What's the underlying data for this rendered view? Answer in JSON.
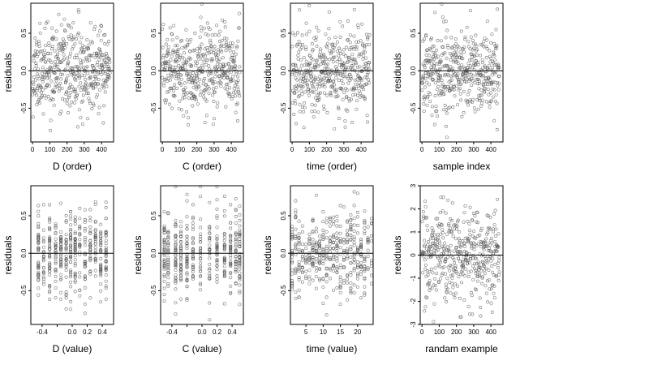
{
  "chart_data": [
    {
      "type": "scatter",
      "xlabel": "D (order)",
      "ylabel": "residuals",
      "xlim": [
        -10,
        470
      ],
      "ylim": [
        -0.95,
        0.9
      ],
      "xticks": [
        0,
        100,
        200,
        300,
        400
      ],
      "yticks": [
        -0.5,
        0.0,
        0.5
      ],
      "xtick_labels": [
        "0",
        "100",
        "200",
        "300",
        "400"
      ],
      "ytick_labels": [
        "-0.5",
        "0.0",
        "0.5"
      ],
      "reference_line_y": 0,
      "point_count": 450,
      "pattern": "index",
      "spread": 0.28,
      "seed": 11
    },
    {
      "type": "scatter",
      "xlabel": "C (order)",
      "ylabel": "residuals",
      "xlim": [
        -10,
        470
      ],
      "ylim": [
        -0.95,
        0.9
      ],
      "xticks": [
        0,
        100,
        200,
        300,
        400
      ],
      "yticks": [
        -0.5,
        0.0,
        0.5
      ],
      "xtick_labels": [
        "0",
        "100",
        "200",
        "300",
        "400"
      ],
      "ytick_labels": [
        "-0.5",
        "0.0",
        "0.5"
      ],
      "reference_line_y": 0,
      "point_count": 450,
      "pattern": "index",
      "spread": 0.28,
      "seed": 23
    },
    {
      "type": "scatter",
      "xlabel": "time (order)",
      "ylabel": "residuals",
      "xlim": [
        -10,
        470
      ],
      "ylim": [
        -0.95,
        0.9
      ],
      "xticks": [
        0,
        100,
        200,
        300,
        400
      ],
      "yticks": [
        -0.5,
        0.0,
        0.5
      ],
      "xtick_labels": [
        "0",
        "100",
        "200",
        "300",
        "400"
      ],
      "ytick_labels": [
        "-0.5",
        "0.0",
        "0.5"
      ],
      "reference_line_y": 0,
      "point_count": 450,
      "pattern": "index",
      "spread": 0.28,
      "seed": 37
    },
    {
      "type": "scatter",
      "xlabel": "sample index",
      "ylabel": "residuals",
      "xlim": [
        -10,
        470
      ],
      "ylim": [
        -0.95,
        0.9
      ],
      "xticks": [
        0,
        100,
        200,
        300,
        400
      ],
      "yticks": [
        -0.5,
        0.0,
        0.5
      ],
      "xtick_labels": [
        "0",
        "100",
        "200",
        "300",
        "400"
      ],
      "ytick_labels": [
        "-0.5",
        "0.0",
        "0.5"
      ],
      "reference_line_y": 0,
      "point_count": 450,
      "pattern": "index",
      "spread": 0.28,
      "seed": 41
    },
    {
      "type": "scatter",
      "xlabel": "D (value)",
      "ylabel": "residuals",
      "xlim": [
        -0.55,
        0.55
      ],
      "ylim": [
        -0.95,
        0.9
      ],
      "xticks": [
        -0.4,
        -0.2,
        0.0,
        0.2,
        0.4
      ],
      "yticks": [
        -0.5,
        0.0,
        0.5
      ],
      "xtick_labels": [
        "-0.4",
        "",
        "0.0",
        "0.2",
        "0.4"
      ],
      "ytick_labels": [
        "-0.5",
        "0.0",
        "0.5"
      ],
      "reference_line_y": 0,
      "point_count": 450,
      "pattern": "levels",
      "x_levels": [
        -0.45,
        -0.38,
        -0.3,
        -0.22,
        -0.15,
        -0.08,
        -0.02,
        0.04,
        0.1,
        0.17,
        0.24,
        0.31,
        0.38,
        0.45
      ],
      "spread": 0.28,
      "seed": 53
    },
    {
      "type": "scatter",
      "xlabel": "C (value)",
      "ylabel": "residuals",
      "xlim": [
        -0.55,
        0.55
      ],
      "ylim": [
        -0.95,
        0.9
      ],
      "xticks": [
        -0.4,
        -0.2,
        0.0,
        0.2,
        0.4
      ],
      "yticks": [
        -0.5,
        0.0,
        0.5
      ],
      "xtick_labels": [
        "-0.4",
        "",
        "0.0",
        "0.2",
        "0.4"
      ],
      "ytick_labels": [
        "-0.5",
        "0.0",
        "0.5"
      ],
      "reference_line_y": 0,
      "point_count": 450,
      "pattern": "levels",
      "x_levels": [
        -0.5,
        -0.45,
        -0.35,
        -0.28,
        -0.2,
        -0.12,
        -0.02,
        0.1,
        0.2,
        0.3,
        0.38,
        0.45,
        0.5
      ],
      "spread": 0.28,
      "seed": 67
    },
    {
      "type": "scatter",
      "xlabel": "time (value)",
      "ylabel": "residuals",
      "xlim": [
        0.5,
        24.5
      ],
      "ylim": [
        -0.95,
        0.9
      ],
      "xticks": [
        5,
        10,
        15,
        20
      ],
      "yticks": [
        -0.5,
        0.0,
        0.5
      ],
      "xtick_labels": [
        "5",
        "10",
        "15",
        "20"
      ],
      "ytick_labels": [
        "-0.5",
        "0.0",
        "0.5"
      ],
      "reference_line_y": 0,
      "point_count": 450,
      "pattern": "levels",
      "x_levels": [
        1,
        2,
        3,
        4,
        5,
        6,
        7,
        8,
        9,
        10,
        11,
        12,
        13,
        14,
        15,
        16,
        17,
        18,
        19,
        20,
        21,
        22,
        23,
        24
      ],
      "spread": 0.28,
      "seed": 71
    },
    {
      "type": "scatter",
      "xlabel": "randam example",
      "ylabel": "residuals",
      "xlim": [
        -10,
        470
      ],
      "ylim": [
        -3.0,
        3.0
      ],
      "xticks": [
        0,
        100,
        200,
        300,
        400
      ],
      "yticks": [
        -3,
        -2,
        -1,
        0,
        1,
        2,
        3
      ],
      "xtick_labels": [
        "0",
        "100",
        "200",
        "300",
        "400"
      ],
      "ytick_labels": [
        "-3",
        "-2",
        "-1",
        "0",
        "1",
        "2",
        "3"
      ],
      "reference_line_y": 0,
      "point_count": 450,
      "pattern": "index",
      "spread": 1.0,
      "seed": 89
    }
  ]
}
